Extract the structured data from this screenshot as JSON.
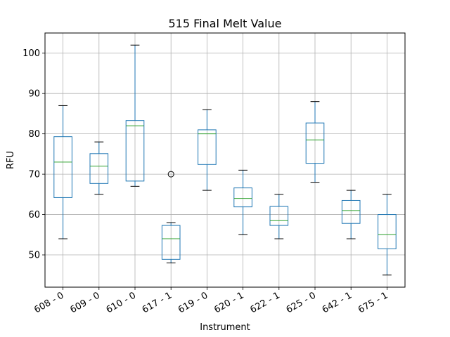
{
  "chart_data": {
    "type": "boxplot",
    "title": "515 Final Melt Value",
    "xlabel": "Instrument",
    "ylabel": "RFU",
    "ylim": [
      42,
      105
    ],
    "yticks": [
      50,
      60,
      70,
      80,
      90,
      100
    ],
    "grid": true,
    "legend": "none",
    "colors": {
      "box": "#1f77b4",
      "median": "#2ca02c",
      "whisker": "#000000",
      "grid": "#b0b0b0"
    },
    "categories": [
      "608 - 0",
      "609 - 0",
      "610 - 0",
      "617 - 1",
      "619 - 0",
      "620 - 1",
      "622 - 1",
      "625 - 0",
      "642 - 1",
      "675 - 1"
    ],
    "boxes": [
      {
        "label": "608 - 0",
        "whisker_low": 54,
        "q1": 64.2,
        "median": 73,
        "q3": 79.3,
        "whisker_high": 87,
        "outliers": []
      },
      {
        "label": "609 - 0",
        "whisker_low": 65,
        "q1": 67.7,
        "median": 72,
        "q3": 75.1,
        "whisker_high": 78,
        "outliers": []
      },
      {
        "label": "610 - 0",
        "whisker_low": 67,
        "q1": 68.3,
        "median": 82,
        "q3": 83.3,
        "whisker_high": 102,
        "outliers": []
      },
      {
        "label": "617 - 1",
        "whisker_low": 48,
        "q1": 48.9,
        "median": 54,
        "q3": 57.3,
        "whisker_high": 58,
        "outliers": [
          70
        ]
      },
      {
        "label": "619 - 0",
        "whisker_low": 66,
        "q1": 72.4,
        "median": 80,
        "q3": 81,
        "whisker_high": 86,
        "outliers": []
      },
      {
        "label": "620 - 1",
        "whisker_low": 55,
        "q1": 61.9,
        "median": 64,
        "q3": 66.6,
        "whisker_high": 71,
        "outliers": []
      },
      {
        "label": "622 - 1",
        "whisker_low": 54,
        "q1": 57.3,
        "median": 58.5,
        "q3": 62,
        "whisker_high": 65,
        "outliers": []
      },
      {
        "label": "625 - 0",
        "whisker_low": 68,
        "q1": 72.7,
        "median": 78.5,
        "q3": 82.7,
        "whisker_high": 88,
        "outliers": []
      },
      {
        "label": "642 - 1",
        "whisker_low": 54,
        "q1": 57.8,
        "median": 61,
        "q3": 63.5,
        "whisker_high": 66,
        "outliers": []
      },
      {
        "label": "675 - 1",
        "whisker_low": 45,
        "q1": 51.5,
        "median": 55,
        "q3": 60,
        "whisker_high": 65,
        "outliers": []
      }
    ]
  }
}
